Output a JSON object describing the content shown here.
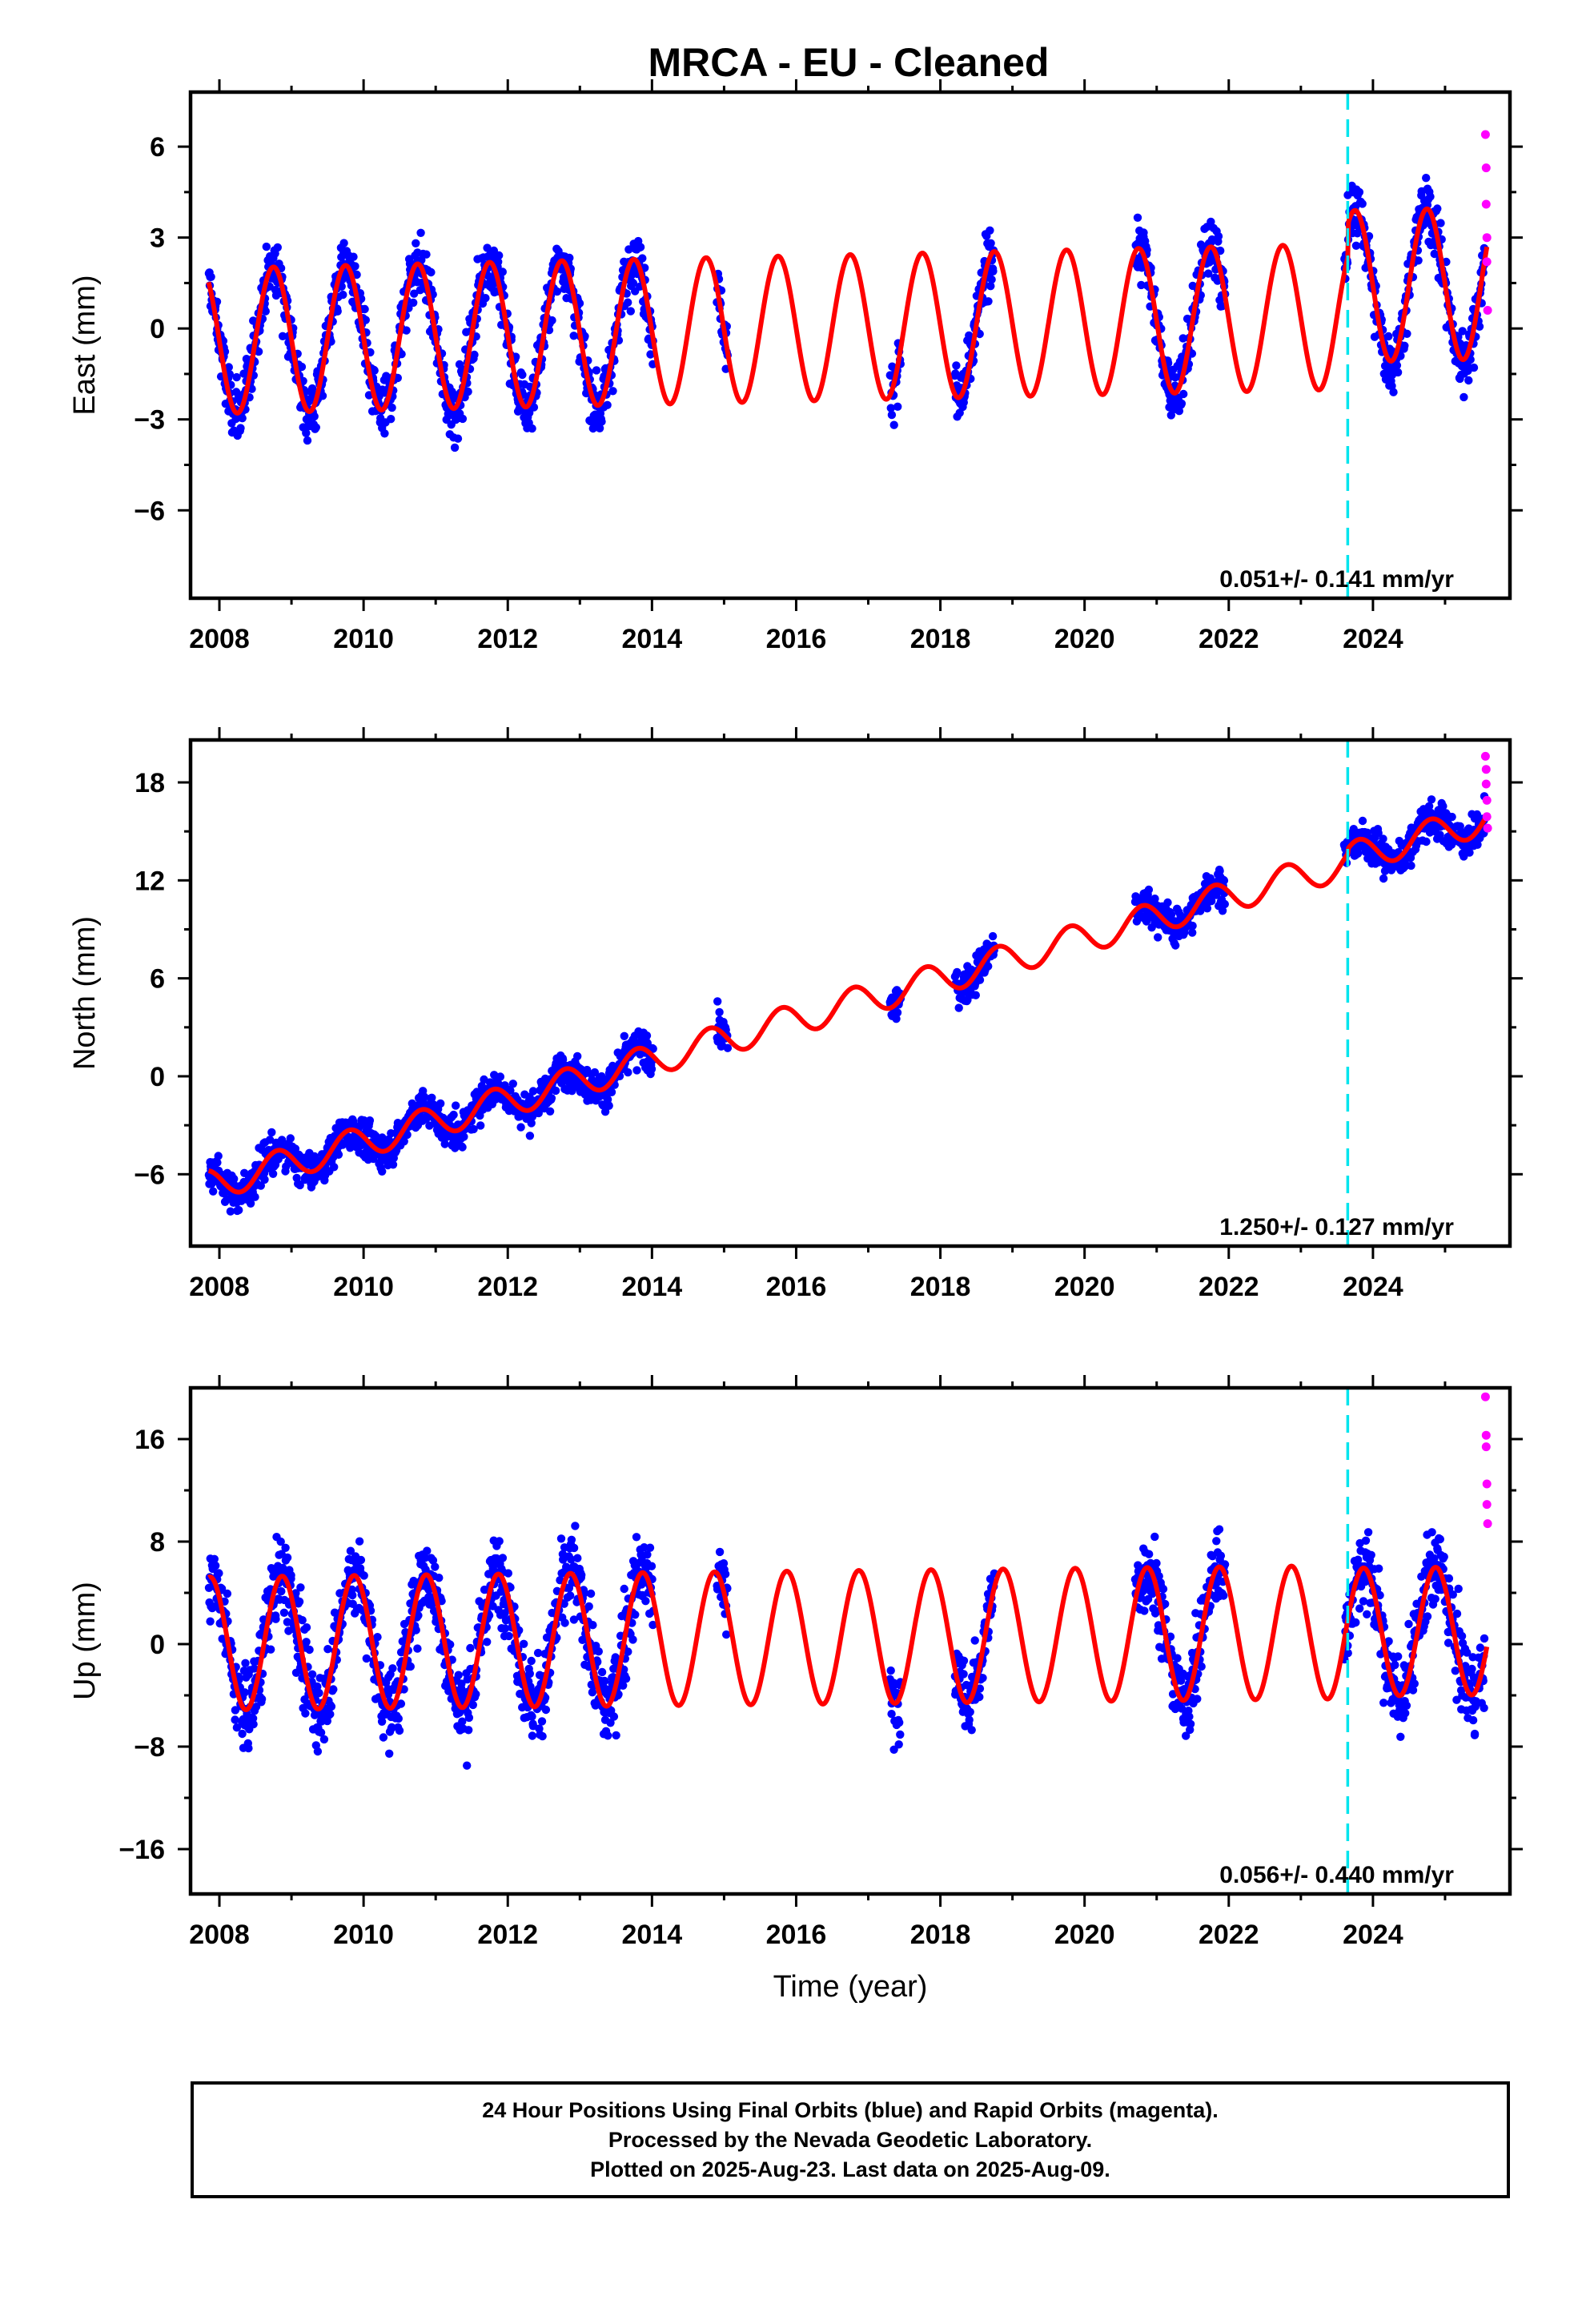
{
  "title": "MRCA  - EU - Cleaned",
  "footer": {
    "line1": "24 Hour Positions Using Final Orbits (blue) and Rapid Orbits (magenta).",
    "line2": "Processed by the Nevada Geodetic Laboratory.",
    "line3": "Plotted on 2025-Aug-23. Last data on 2025-Aug-09."
  },
  "colors": {
    "final_orbits": "#0000ff",
    "rapid_orbits": "#ff00ff",
    "model": "#ff0000",
    "event_line": "#00e5ee",
    "axes": "#000000"
  },
  "chart_data": [
    {
      "type": "scatter",
      "ylabel": "East (mm)",
      "xlabel": "",
      "xlim": [
        2007.6,
        2025.9
      ],
      "ylim": [
        -8.9,
        7.8
      ],
      "xticks": [
        2008,
        2010,
        2012,
        2014,
        2016,
        2018,
        2020,
        2022,
        2024
      ],
      "yticks": [
        -6,
        -3,
        0,
        3,
        6
      ],
      "rate_text": "0.051+/- 0.141 mm/yr",
      "event_line_x": 2023.65,
      "model": {
        "offset": 0.0,
        "rate": 0.051,
        "ref_year": 2016.0,
        "amplitude": 2.4,
        "phase_year": 0.5,
        "post_event_offset": 1.0,
        "post_event_amplitude": 2.5
      },
      "data_segments": [
        [
          2007.85,
          2014.02
        ],
        [
          2014.9,
          2015.05
        ],
        [
          2017.3,
          2017.45
        ],
        [
          2018.2,
          2018.75
        ],
        [
          2020.7,
          2021.95
        ],
        [
          2023.6,
          2025.55
        ]
      ],
      "scatter_spread": 1.3,
      "rapid_points": [
        {
          "x": 2025.56,
          "y": 6.4
        },
        {
          "x": 2025.57,
          "y": 5.3
        },
        {
          "x": 2025.57,
          "y": 4.1
        },
        {
          "x": 2025.58,
          "y": 3.0
        },
        {
          "x": 2025.58,
          "y": 2.2
        },
        {
          "x": 2025.59,
          "y": 0.6
        }
      ]
    },
    {
      "type": "scatter",
      "ylabel": "North (mm)",
      "xlabel": "",
      "xlim": [
        2007.6,
        2025.9
      ],
      "ylim": [
        -10.4,
        20.6
      ],
      "xticks": [
        2008,
        2010,
        2012,
        2014,
        2016,
        2018,
        2020,
        2022,
        2024
      ],
      "yticks": [
        -6,
        0,
        6,
        12,
        18
      ],
      "rate_text": "1.250+/- 0.127 mm/yr",
      "event_line_x": 2023.65,
      "model": {
        "offset": 3.5,
        "rate": 1.25,
        "ref_year": 2016.0,
        "amplitude": 0.95,
        "phase_year": 0.55,
        "post_event_offset": 0.3,
        "post_event_amplitude": 0.95
      },
      "data_segments": [
        [
          2007.85,
          2014.02
        ],
        [
          2014.9,
          2015.05
        ],
        [
          2017.3,
          2017.45
        ],
        [
          2018.2,
          2018.75
        ],
        [
          2020.7,
          2021.95
        ],
        [
          2023.6,
          2025.55
        ]
      ],
      "scatter_spread": 1.4,
      "rapid_points": [
        {
          "x": 2025.56,
          "y": 19.6
        },
        {
          "x": 2025.57,
          "y": 18.8
        },
        {
          "x": 2025.57,
          "y": 17.9
        },
        {
          "x": 2025.58,
          "y": 16.9
        },
        {
          "x": 2025.58,
          "y": 15.9
        },
        {
          "x": 2025.59,
          "y": 15.2
        }
      ]
    },
    {
      "type": "scatter",
      "ylabel": "Up (mm)",
      "xlabel": "Time (year)",
      "xlim": [
        2007.6,
        2025.9
      ],
      "ylim": [
        -19.5,
        20.0
      ],
      "xticks": [
        2008,
        2010,
        2012,
        2014,
        2016,
        2018,
        2020,
        2022,
        2024
      ],
      "yticks": [
        -16,
        -8,
        0,
        8,
        16
      ],
      "rate_text": "0.056+/- 0.440 mm/yr",
      "event_line_x": 2023.65,
      "model": {
        "offset": 0.5,
        "rate": 0.056,
        "ref_year": 2016.0,
        "amplitude": 5.2,
        "phase_year": 0.62,
        "post_event_offset": 0.0,
        "post_event_amplitude": 5.0
      },
      "data_segments": [
        [
          2007.85,
          2014.02
        ],
        [
          2014.9,
          2015.05
        ],
        [
          2017.3,
          2017.45
        ],
        [
          2018.2,
          2018.75
        ],
        [
          2020.7,
          2021.95
        ],
        [
          2023.6,
          2025.55
        ]
      ],
      "scatter_spread": 4.0,
      "rapid_points": [
        {
          "x": 2025.56,
          "y": 19.3
        },
        {
          "x": 2025.57,
          "y": 16.3
        },
        {
          "x": 2025.57,
          "y": 15.4
        },
        {
          "x": 2025.58,
          "y": 12.5
        },
        {
          "x": 2025.58,
          "y": 10.9
        },
        {
          "x": 2025.59,
          "y": 9.4
        }
      ]
    }
  ]
}
